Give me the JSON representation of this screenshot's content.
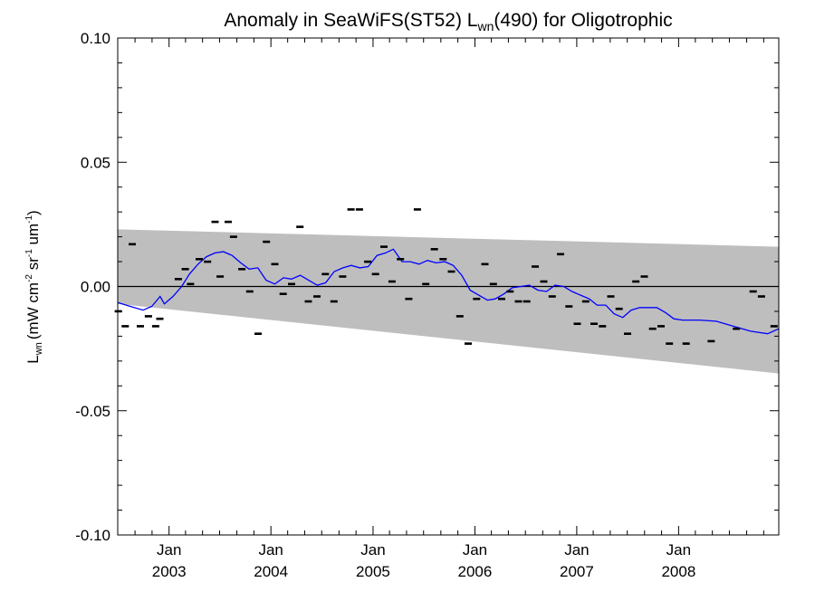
{
  "chart_data": {
    "type": "scatter",
    "title": "Anomaly in SeaWiFS(ST52) L",
    "title_sub": "wn",
    "title_suffix": "(490) for Oligotrophic",
    "ylabel_main": "L",
    "ylabel_sub": "wn",
    "ylabel_units": "(mW cm",
    "ylabel_exp1": "-2",
    "ylabel_mid1": " sr",
    "ylabel_exp2": "-1",
    "ylabel_mid2": " um",
    "ylabel_exp3": "-1",
    "ylabel_end": ")",
    "ylim": [
      -0.1,
      0.1
    ],
    "yticks": [
      "0.10",
      "0.05",
      "0.00",
      "-0.05",
      "-0.10"
    ],
    "ytick_values": [
      0.1,
      0.05,
      0.0,
      -0.05,
      -0.1
    ],
    "xlim": [
      "2002-07-01",
      "2008-12-25"
    ],
    "xticks": [
      {
        "date": "2003-01-01",
        "month": "Jan",
        "year": "2003"
      },
      {
        "date": "2004-01-01",
        "month": "Jan",
        "year": "2004"
      },
      {
        "date": "2005-01-01",
        "month": "Jan",
        "year": "2005"
      },
      {
        "date": "2006-01-01",
        "month": "Jan",
        "year": "2006"
      },
      {
        "date": "2007-01-01",
        "month": "Jan",
        "year": "2007"
      },
      {
        "date": "2008-01-01",
        "month": "Jan",
        "year": "2008"
      }
    ],
    "band": {
      "color": "#bebebe",
      "upper": [
        [
          "2002-07-01",
          0.023
        ],
        [
          "2008-12-25",
          0.016
        ]
      ],
      "lower": [
        [
          "2002-07-01",
          -0.007
        ],
        [
          "2008-12-25",
          -0.035
        ]
      ]
    },
    "zero_line": 0.0,
    "line_color": "#0000ff",
    "point_color": "#000000",
    "series": [
      {
        "kind": "points",
        "x": [
          "2002-07-03",
          "2002-07-28",
          "2002-08-22",
          "2002-09-20",
          "2002-10-19",
          "2002-11-14",
          "2002-11-29",
          "2003-02-03",
          "2003-02-28",
          "2003-03-19",
          "2003-04-19",
          "2003-05-19",
          "2003-06-15",
          "2003-07-03",
          "2003-08-01",
          "2003-08-20",
          "2003-09-19",
          "2003-10-17",
          "2003-11-16",
          "2003-12-16",
          "2004-01-15",
          "2004-02-14",
          "2004-03-15",
          "2004-04-14",
          "2004-05-14",
          "2004-06-14",
          "2004-07-14",
          "2004-08-14",
          "2004-09-14",
          "2004-10-14",
          "2004-11-13",
          "2004-12-13",
          "2005-01-10",
          "2005-02-09",
          "2005-03-10",
          "2005-04-09",
          "2005-05-09",
          "2005-06-09",
          "2005-07-09",
          "2005-08-09",
          "2005-09-09",
          "2005-10-09",
          "2005-11-08",
          "2005-12-08",
          "2006-01-07",
          "2006-02-06",
          "2006-03-08",
          "2006-04-07",
          "2006-05-07",
          "2006-06-06",
          "2006-07-06",
          "2006-08-05",
          "2006-09-05",
          "2006-10-05",
          "2006-11-04",
          "2006-12-04",
          "2007-01-03",
          "2007-02-02",
          "2007-03-04",
          "2007-04-03",
          "2007-05-03",
          "2007-06-02",
          "2007-07-02",
          "2007-08-01",
          "2007-08-31",
          "2007-09-30",
          "2007-10-30",
          "2007-11-29",
          "2008-01-28",
          "2008-04-27",
          "2008-07-26",
          "2008-09-24",
          "2008-10-24",
          "2008-12-08"
        ],
        "y": [
          -0.01,
          -0.016,
          0.017,
          -0.016,
          -0.012,
          -0.016,
          -0.013,
          0.003,
          0.007,
          0.001,
          0.011,
          0.01,
          0.026,
          0.004,
          0.026,
          0.02,
          0.007,
          -0.002,
          -0.019,
          0.018,
          0.009,
          -0.003,
          0.001,
          0.024,
          -0.006,
          -0.004,
          0.005,
          -0.006,
          0.004,
          0.031,
          0.031,
          0.01,
          0.005,
          0.016,
          0.002,
          0.011,
          -0.005,
          0.031,
          0.001,
          0.015,
          0.011,
          0.006,
          -0.012,
          -0.023,
          -0.005,
          0.009,
          0.001,
          -0.005,
          -0.002,
          -0.006,
          -0.006,
          0.008,
          0.002,
          -0.004,
          0.013,
          -0.008,
          -0.015,
          -0.006,
          -0.015,
          -0.016,
          -0.004,
          -0.009,
          -0.019,
          0.002,
          0.004,
          -0.017,
          -0.016,
          -0.023,
          -0.023,
          -0.022,
          -0.017,
          -0.002,
          -0.004,
          -0.016
        ]
      },
      {
        "kind": "line",
        "x": [
          "2002-07-01",
          "2002-08-15",
          "2002-09-30",
          "2002-10-31",
          "2002-11-30",
          "2002-12-15",
          "2003-01-15",
          "2003-02-15",
          "2003-03-15",
          "2003-04-15",
          "2003-05-15",
          "2003-06-15",
          "2003-07-15",
          "2003-08-15",
          "2003-09-15",
          "2003-10-15",
          "2003-11-15",
          "2003-12-15",
          "2004-01-15",
          "2004-02-15",
          "2004-03-15",
          "2004-04-15",
          "2004-05-15",
          "2004-06-15",
          "2004-07-15",
          "2004-08-15",
          "2004-09-15",
          "2004-10-15",
          "2004-11-15",
          "2004-12-15",
          "2005-01-15",
          "2005-02-15",
          "2005-03-15",
          "2005-04-15",
          "2005-05-15",
          "2005-06-15",
          "2005-07-15",
          "2005-08-15",
          "2005-09-15",
          "2005-10-15",
          "2005-11-15",
          "2005-12-15",
          "2006-01-15",
          "2006-02-15",
          "2006-03-15",
          "2006-04-15",
          "2006-05-15",
          "2006-06-15",
          "2006-07-15",
          "2006-08-15",
          "2006-09-15",
          "2006-10-15",
          "2006-11-15",
          "2006-12-15",
          "2007-01-15",
          "2007-02-15",
          "2007-03-15",
          "2007-04-15",
          "2007-05-15",
          "2007-06-15",
          "2007-07-15",
          "2007-08-15",
          "2007-09-15",
          "2007-10-15",
          "2007-11-15",
          "2007-12-15",
          "2008-01-15",
          "2008-03-15",
          "2008-05-15",
          "2008-07-15",
          "2008-09-15",
          "2008-11-15",
          "2008-12-25"
        ],
        "y": [
          -0.0065,
          -0.008,
          -0.0095,
          -0.008,
          -0.004,
          -0.007,
          -0.004,
          0.0,
          0.005,
          0.009,
          0.012,
          0.0135,
          0.014,
          0.0125,
          0.0095,
          0.007,
          0.0075,
          0.0025,
          0.001,
          0.0035,
          0.003,
          0.0045,
          0.0025,
          0.0005,
          0.0015,
          0.006,
          0.0075,
          0.0085,
          0.0075,
          0.008,
          0.0125,
          0.0135,
          0.015,
          0.01,
          0.01,
          0.009,
          0.0105,
          0.0095,
          0.01,
          0.0085,
          0.0045,
          -0.0015,
          -0.0035,
          -0.0055,
          -0.005,
          -0.003,
          -0.0005,
          0.0,
          0.0005,
          -0.0015,
          -0.002,
          0.0005,
          0.0,
          -0.002,
          -0.0035,
          -0.005,
          -0.0075,
          -0.0075,
          -0.011,
          -0.0125,
          -0.0095,
          -0.0085,
          -0.0085,
          -0.0085,
          -0.0105,
          -0.013,
          -0.0135,
          -0.0135,
          -0.014,
          -0.016,
          -0.018,
          -0.019,
          -0.017
        ]
      }
    ]
  }
}
